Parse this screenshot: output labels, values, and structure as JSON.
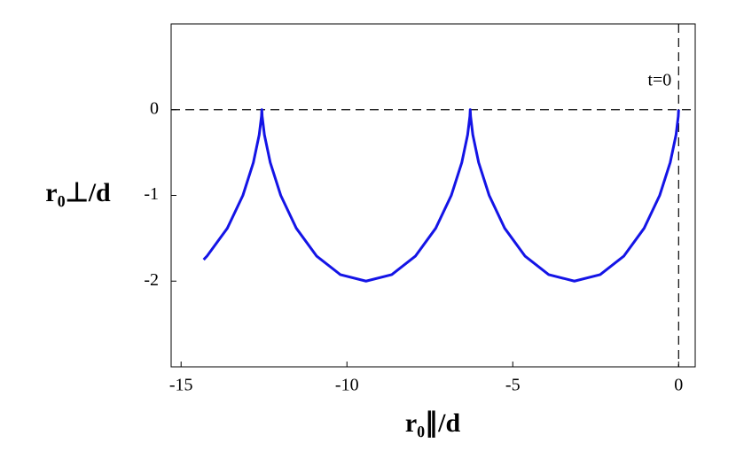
{
  "chart_data": {
    "type": "line",
    "x_label": "r₀∥/d",
    "y_label": "r₀⊥/d",
    "annotation": "t=0",
    "xlim": [
      -15.3,
      0.5
    ],
    "ylim": [
      -3,
      1
    ],
    "xticks": [
      -15,
      -10,
      -5,
      0
    ],
    "yticks": [
      -2,
      -1,
      0
    ],
    "hlines": [
      0
    ],
    "vlines": [
      0
    ],
    "grid": false,
    "series": [
      {
        "color": "#1414e6",
        "x": [
          0,
          -0.01,
          -0.078,
          -0.254,
          -0.571,
          -1.04,
          -1.649,
          -2.366,
          -3.142,
          -3.917,
          -4.634,
          -5.244,
          -5.712,
          -6.029,
          -6.205,
          -6.273,
          -6.283,
          -6.293,
          -6.361,
          -6.537,
          -6.854,
          -7.323,
          -7.932,
          -8.649,
          -9.425,
          -10.2,
          -10.917,
          -11.527,
          -11.996,
          -12.312,
          -12.488,
          -12.556,
          -12.566,
          -12.576,
          -12.645,
          -12.821,
          -13.137,
          -13.606,
          -14.216,
          -14.32
        ],
        "values": [
          0,
          -0.076,
          -0.293,
          -0.617,
          -1,
          -1.383,
          -1.707,
          -1.924,
          -2,
          -1.924,
          -1.707,
          -1.383,
          -1,
          -0.617,
          -0.293,
          -0.076,
          0,
          -0.076,
          -0.293,
          -0.617,
          -1,
          -1.383,
          -1.707,
          -1.924,
          -2,
          -1.924,
          -1.707,
          -1.383,
          -1,
          -0.617,
          -0.293,
          -0.076,
          0,
          -0.076,
          -0.293,
          -0.617,
          -1,
          -1.383,
          -1.707,
          -1.75
        ]
      }
    ]
  }
}
